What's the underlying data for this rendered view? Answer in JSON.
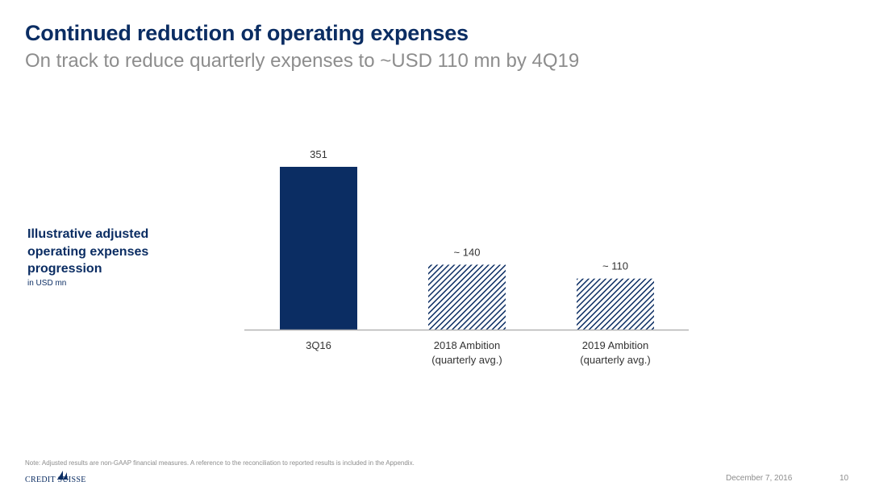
{
  "header": {
    "title": "Continued reduction of operating expenses",
    "subtitle": "On track to reduce quarterly expenses to ~USD 110 mn by 4Q19"
  },
  "side_label": {
    "title": "Illustrative adjusted operating expenses progression",
    "unit": "in USD mn"
  },
  "chart_data": {
    "type": "bar",
    "categories": [
      "3Q16",
      "2018 Ambition\n(quarterly avg.)",
      "2019 Ambition\n(quarterly avg.)"
    ],
    "values": [
      351,
      140,
      110
    ],
    "data_labels": [
      "351",
      "~ 140",
      "~ 110"
    ],
    "bar_styles": [
      "solid",
      "hatched",
      "hatched"
    ],
    "title": "",
    "xlabel": "",
    "ylabel": "",
    "ylim": [
      0,
      351
    ],
    "grid": false,
    "colors": {
      "bar": "#0b2d63",
      "hatch": "#0b2d63",
      "axis": "#b3b3b3",
      "text": "#333333"
    }
  },
  "footer": {
    "note": "Note: Adjusted results are non-GAAP financial measures. A reference to the reconciliation to reported results is included in the Appendix.",
    "logo_text": "CREDIT SUISSE",
    "date": "December 7, 2016",
    "page_number": "10"
  }
}
